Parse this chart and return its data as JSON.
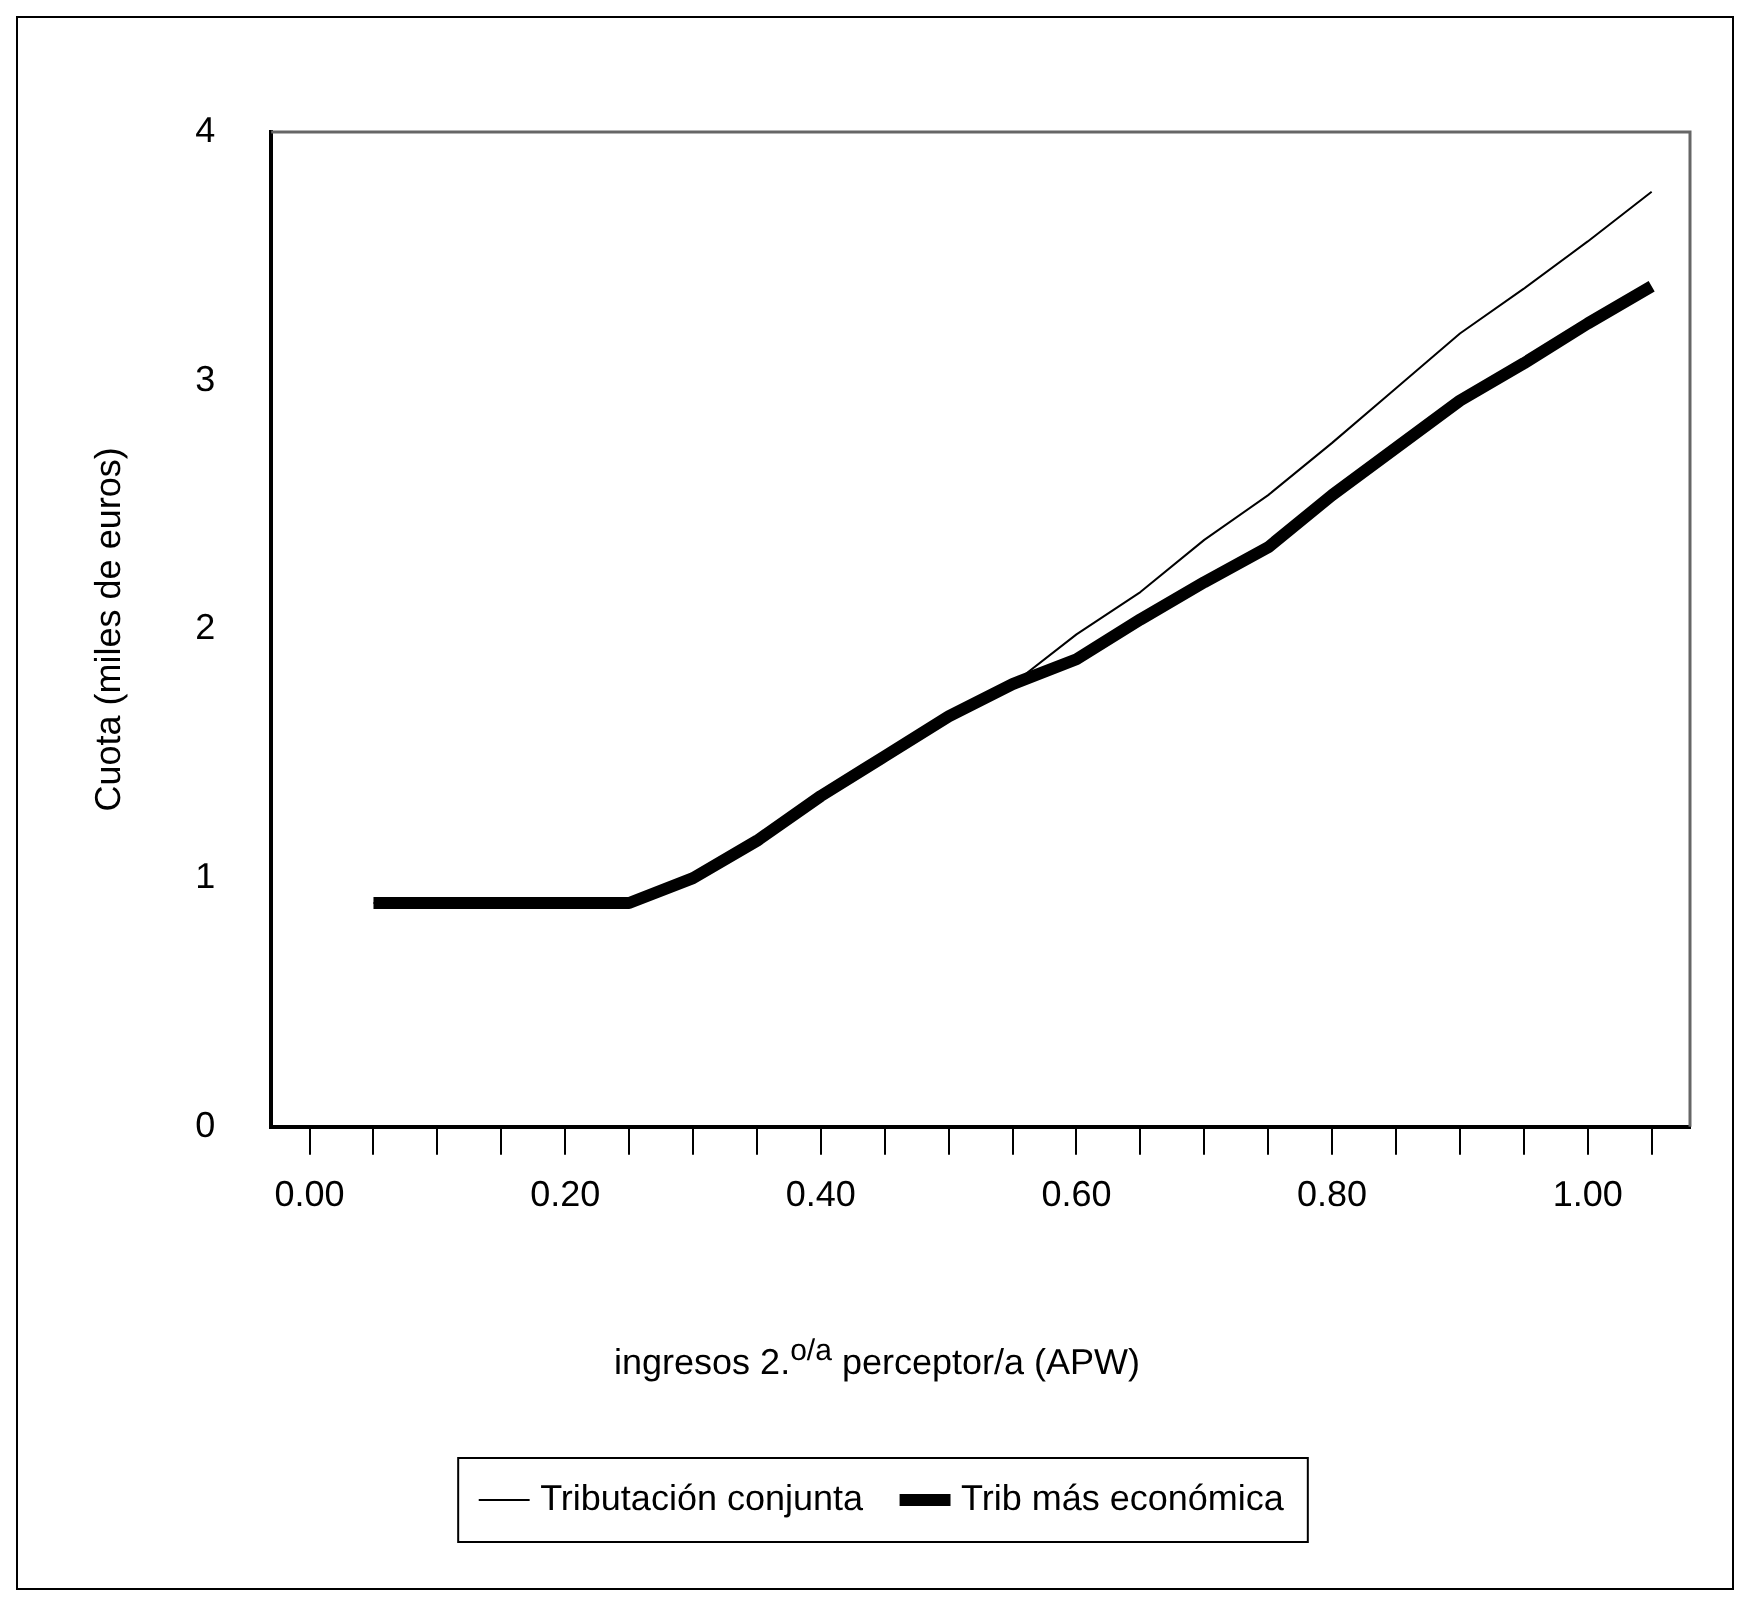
{
  "chart_data": {
    "type": "line",
    "xlabel": "ingresos 2.$^{o/a}$ perceptor/a (APW)",
    "ylabel": "Cuota (miles de euros)",
    "x": [
      0.05,
      0.1,
      0.15,
      0.2,
      0.25,
      0.3,
      0.35,
      0.4,
      0.45,
      0.5,
      0.55,
      0.6,
      0.65,
      0.7,
      0.75,
      0.8,
      0.85,
      0.9,
      0.95,
      1.0,
      1.05
    ],
    "series": [
      {
        "name": "Tributación conjunta",
        "color": "#000000",
        "values": [
          0.9,
          0.9,
          0.9,
          0.9,
          0.9,
          1.0,
          1.15,
          1.33,
          1.49,
          1.65,
          1.78,
          1.98,
          2.15,
          2.36,
          2.54,
          2.75,
          2.97,
          3.19,
          3.37,
          3.56,
          3.76
        ]
      },
      {
        "name": "Trib más económica",
        "color": "#000000",
        "values": [
          0.9,
          0.9,
          0.9,
          0.9,
          0.9,
          1.0,
          1.15,
          1.33,
          1.49,
          1.65,
          1.78,
          1.88,
          2.04,
          2.19,
          2.33,
          2.54,
          2.73,
          2.92,
          3.07,
          3.23,
          3.38
        ]
      }
    ],
    "xlim": [
      -0.03,
      1.08
    ],
    "xticks": [
      {
        "value": 0,
        "label": "0.00"
      },
      {
        "value": 0.05,
        "label": null
      },
      {
        "value": 0.1,
        "label": null
      },
      {
        "value": 0.15,
        "label": null
      },
      {
        "value": 0.2,
        "label": "0.20"
      },
      {
        "value": 0.25,
        "label": null
      },
      {
        "value": 0.3,
        "label": null
      },
      {
        "value": 0.35,
        "label": null
      },
      {
        "value": 0.4,
        "label": "0.40"
      },
      {
        "value": 0.45,
        "label": null
      },
      {
        "value": 0.5,
        "label": null
      },
      {
        "value": 0.55,
        "label": null
      },
      {
        "value": 0.6,
        "label": "0.60"
      },
      {
        "value": 0.65,
        "label": null
      },
      {
        "value": 0.7,
        "label": null
      },
      {
        "value": 0.75,
        "label": null
      },
      {
        "value": 0.8,
        "label": "0.80"
      },
      {
        "value": 0.85,
        "label": null
      },
      {
        "value": 0.9,
        "label": null
      },
      {
        "value": 0.95,
        "label": null
      },
      {
        "value": 1.0,
        "label": "1.00"
      },
      {
        "value": 1.05,
        "label": null
      }
    ],
    "ylim": [
      0,
      4
    ],
    "yticks": [
      0,
      1,
      2,
      3,
      4
    ],
    "grid": false,
    "legend": "bottom",
    "marker": "none",
    "line_style": "solid"
  }
}
